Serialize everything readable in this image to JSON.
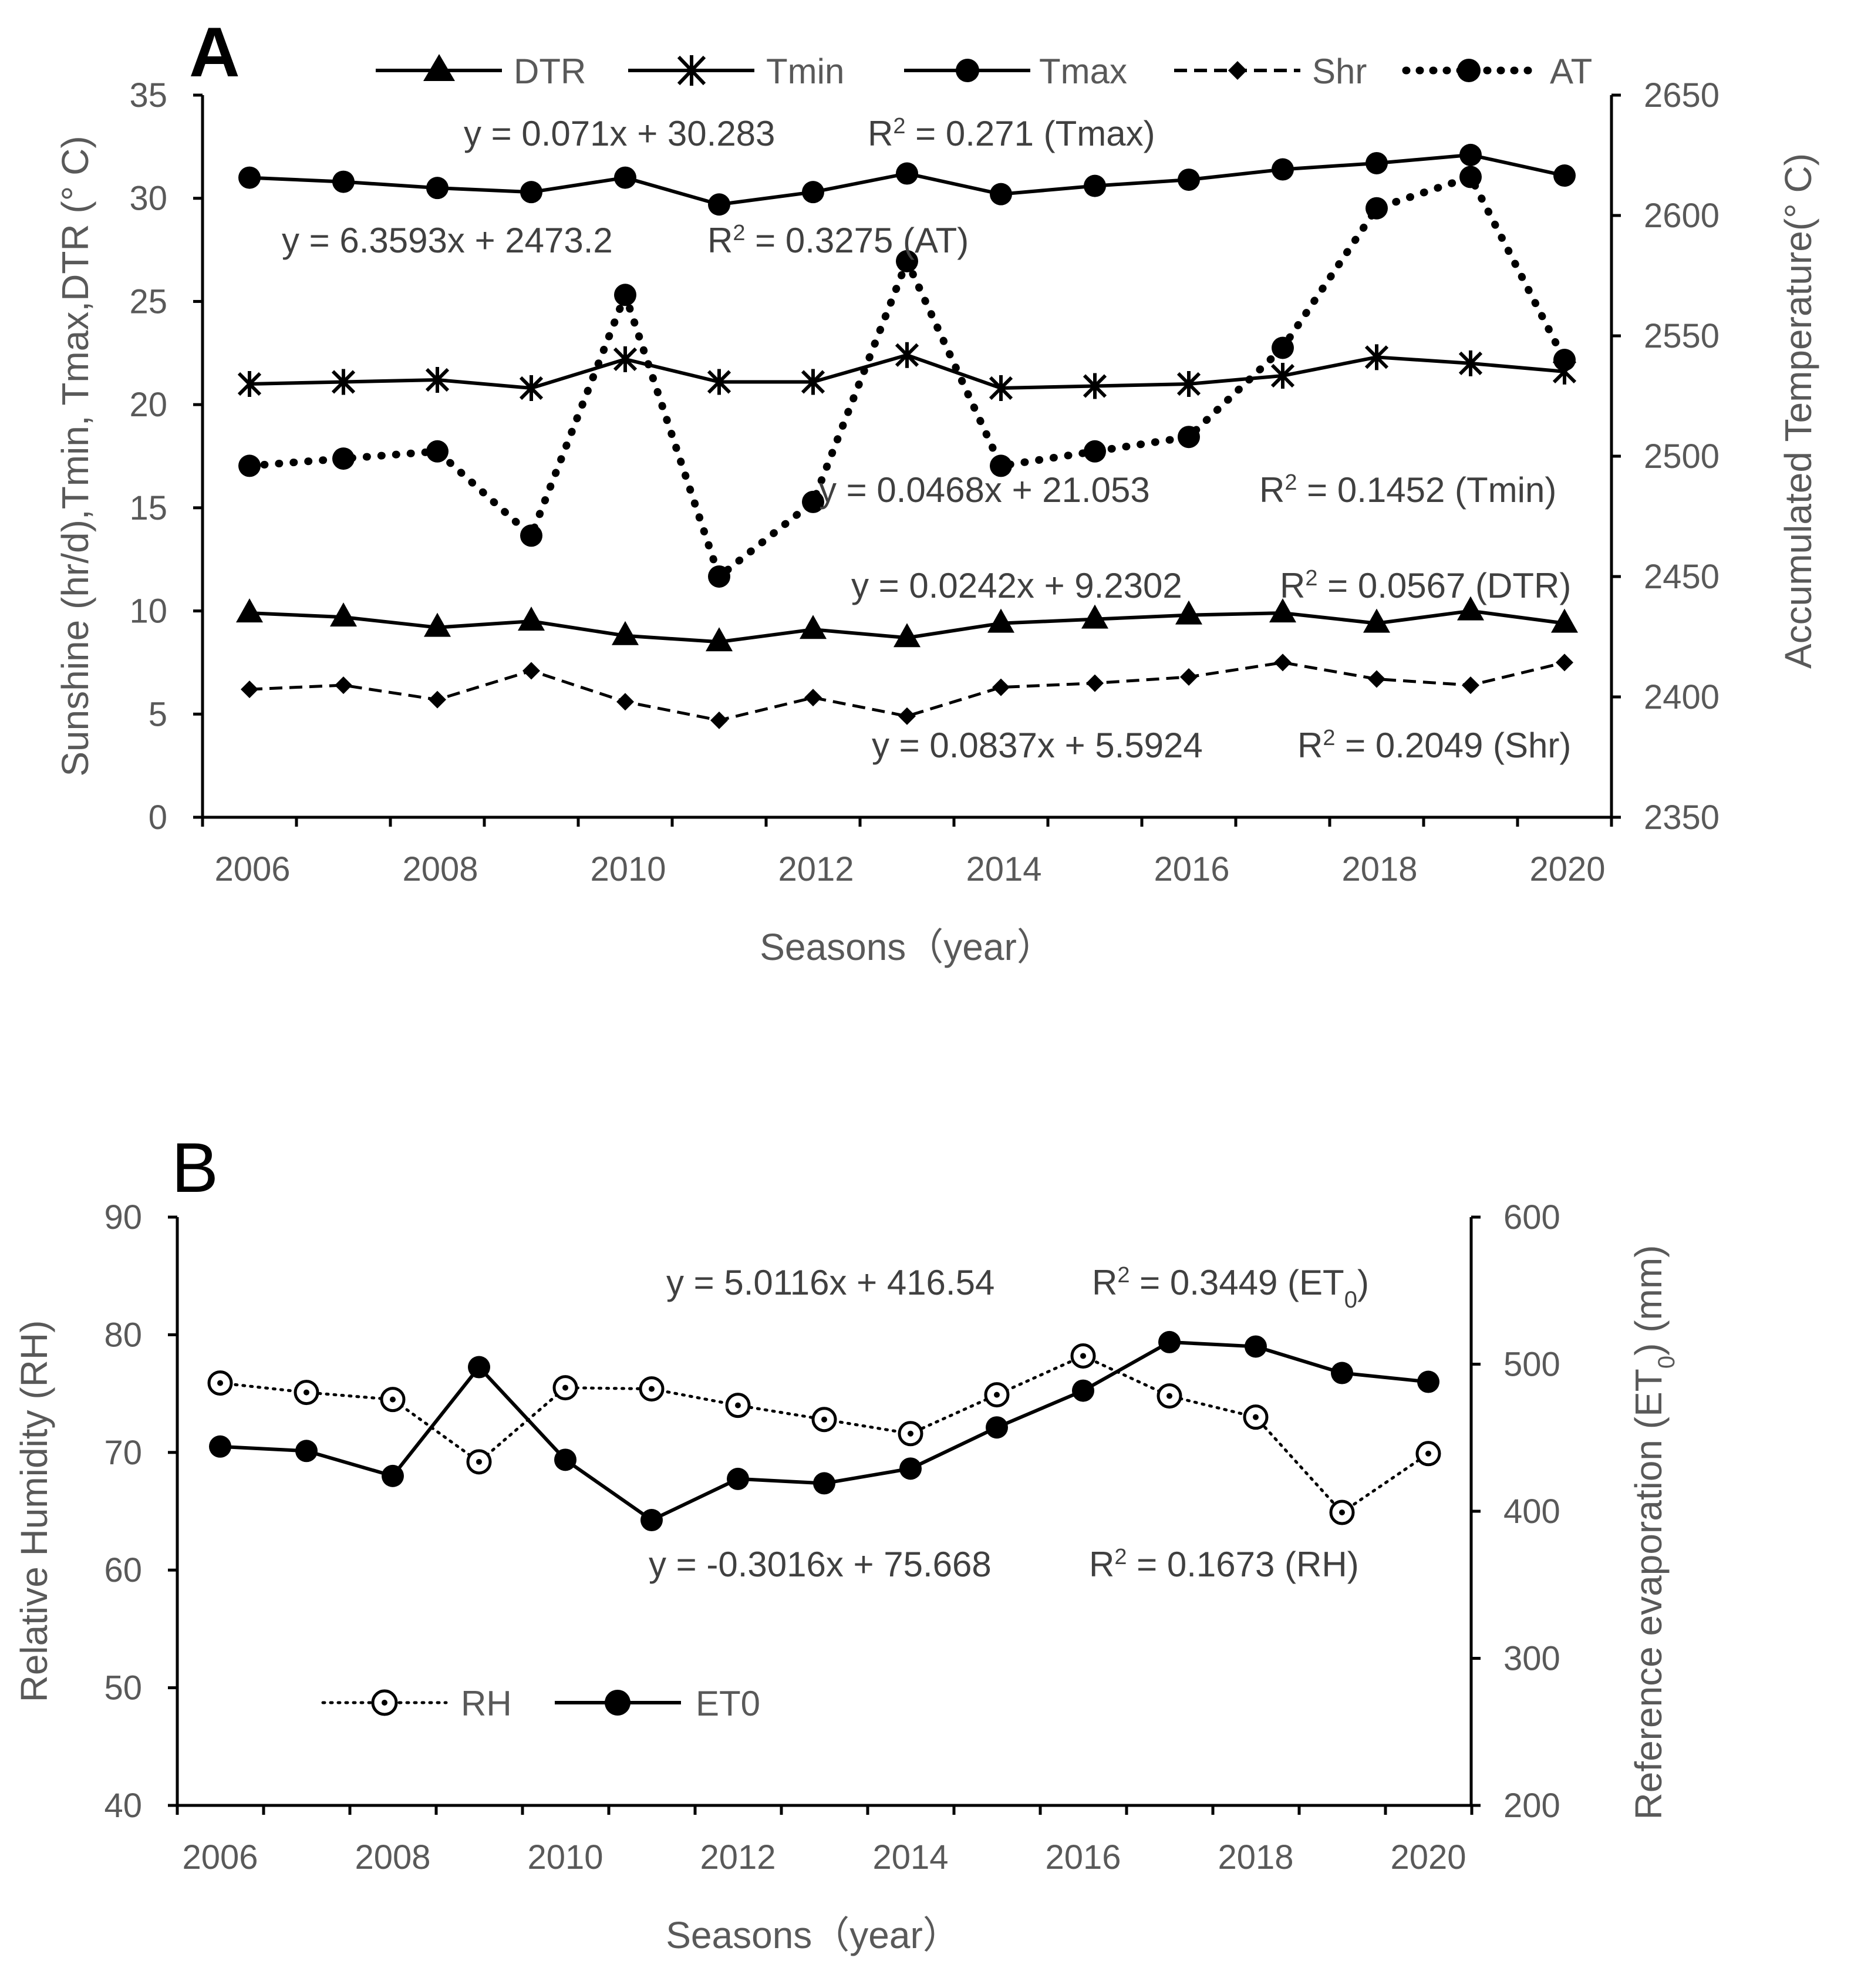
{
  "chart_data": [
    {
      "panel": "A",
      "type": "line",
      "categories": [
        "2006",
        "2007",
        "2008",
        "2009",
        "2010",
        "2011",
        "2012",
        "2013",
        "2014",
        "2015",
        "2016",
        "2017",
        "2018",
        "2019",
        "2020"
      ],
      "x_tick_labels": [
        "2006",
        "2008",
        "2010",
        "2012",
        "2014",
        "2016",
        "2018",
        "2020"
      ],
      "xlabel": "Seasons（year）",
      "ylabel": "Sunshine (hr/d),Tmin, Tmax,DTR (° C)",
      "y2label": "Accumulated Temperature(° C)",
      "ylim": [
        0,
        35
      ],
      "y_ticks": [
        "0",
        "5",
        "10",
        "15",
        "20",
        "25",
        "30",
        "35"
      ],
      "y2lim": [
        2350,
        2650
      ],
      "y2_ticks": [
        "2350",
        "2400",
        "2450",
        "2500",
        "2550",
        "2600",
        "2650"
      ],
      "series": [
        {
          "name": "DTR",
          "axis": "left",
          "marker": "triangle",
          "style": "solid",
          "values": [
            9.9,
            9.7,
            9.2,
            9.5,
            8.8,
            8.5,
            9.1,
            8.7,
            9.4,
            9.6,
            9.8,
            9.9,
            9.4,
            10.0,
            9.4
          ]
        },
        {
          "name": "Tmin",
          "axis": "left",
          "marker": "asterisk",
          "style": "solid",
          "values": [
            21.0,
            21.1,
            21.2,
            20.8,
            22.2,
            21.1,
            21.1,
            22.4,
            20.8,
            20.9,
            21.0,
            21.4,
            22.3,
            22.0,
            21.6
          ]
        },
        {
          "name": "Tmax",
          "axis": "left",
          "marker": "circle",
          "style": "solid",
          "values": [
            31.0,
            30.8,
            30.5,
            30.3,
            31.0,
            29.7,
            30.3,
            31.2,
            30.2,
            30.6,
            30.9,
            31.4,
            31.7,
            32.1,
            31.1
          ]
        },
        {
          "name": "Shr",
          "axis": "left",
          "marker": "diamond",
          "style": "dashed",
          "values": [
            6.2,
            6.4,
            5.7,
            7.1,
            5.6,
            4.7,
            5.8,
            4.9,
            6.3,
            6.5,
            6.8,
            7.5,
            6.7,
            6.4,
            7.5
          ]
        },
        {
          "name": "AT",
          "axis": "right",
          "marker": "circle",
          "style": "dotted",
          "values": [
            2496,
            2499,
            2502,
            2467,
            2567,
            2450,
            2481,
            2581,
            2496,
            2502,
            2508,
            2545,
            2603,
            2616,
            2540
          ]
        }
      ],
      "annotations": [
        {
          "eq": "y = 0.071x + 30.283",
          "r2": " = 0.271 (Tmax)"
        },
        {
          "eq": "y = 6.3593x + 2473.2",
          "r2": " = 0.3275 (AT)"
        },
        {
          "eq": "y = 0.0468x + 21.053",
          "r2": " = 0.1452 (Tmin)"
        },
        {
          "eq": "y = 0.0242x + 9.2302",
          "r2": " = 0.0567 (DTR)"
        },
        {
          "eq": "y = 0.0837x + 5.5924",
          "r2": " = 0.2049 (Shr)"
        }
      ],
      "legend_position": "top"
    },
    {
      "panel": "B",
      "type": "line",
      "categories": [
        "2006",
        "2007",
        "2008",
        "2009",
        "2010",
        "2011",
        "2012",
        "2013",
        "2014",
        "2015",
        "2016",
        "2017",
        "2018",
        "2019",
        "2020"
      ],
      "x_tick_labels": [
        "2006",
        "2008",
        "2010",
        "2012",
        "2014",
        "2016",
        "2018",
        "2020"
      ],
      "xlabel": "Seasons（year）",
      "ylabel": "Relative Humidity (RH)",
      "y2label": "Reference evaporation (ET",
      "y2label_sub": "0",
      "y2label_tail": ") (mm)",
      "ylim": [
        40,
        90
      ],
      "y_ticks": [
        "40",
        "50",
        "60",
        "70",
        "80",
        "90"
      ],
      "y2lim": [
        200,
        600
      ],
      "y2_ticks": [
        "200",
        "300",
        "400",
        "500",
        "600"
      ],
      "series": [
        {
          "name": "RH",
          "axis": "left",
          "marker": "open-circle",
          "style": "dotted",
          "values": [
            75.9,
            75.1,
            74.5,
            69.2,
            75.5,
            75.4,
            74.0,
            72.8,
            71.6,
            74.9,
            78.2,
            74.8,
            73.0,
            64.9,
            69.9
          ]
        },
        {
          "name": "ET0",
          "axis": "right",
          "marker": "circle",
          "style": "solid",
          "values": [
            444,
            441,
            424,
            498,
            435,
            394,
            422,
            419,
            429,
            457,
            482,
            515,
            512,
            494,
            488
          ]
        }
      ],
      "annotations": [
        {
          "eq": "y = 5.0116x + 416.54",
          "r2": " = 0.3449 (ET",
          "r2_sub": "0",
          "r2_tail": ")"
        },
        {
          "eq": "y = -0.3016x + 75.668",
          "r2": " = 0.1673 (RH)"
        }
      ],
      "legend_position": "bottom-left"
    }
  ],
  "panel_labels": [
    "A",
    "B"
  ],
  "r2_prefix": "R",
  "r2_sup": "2"
}
